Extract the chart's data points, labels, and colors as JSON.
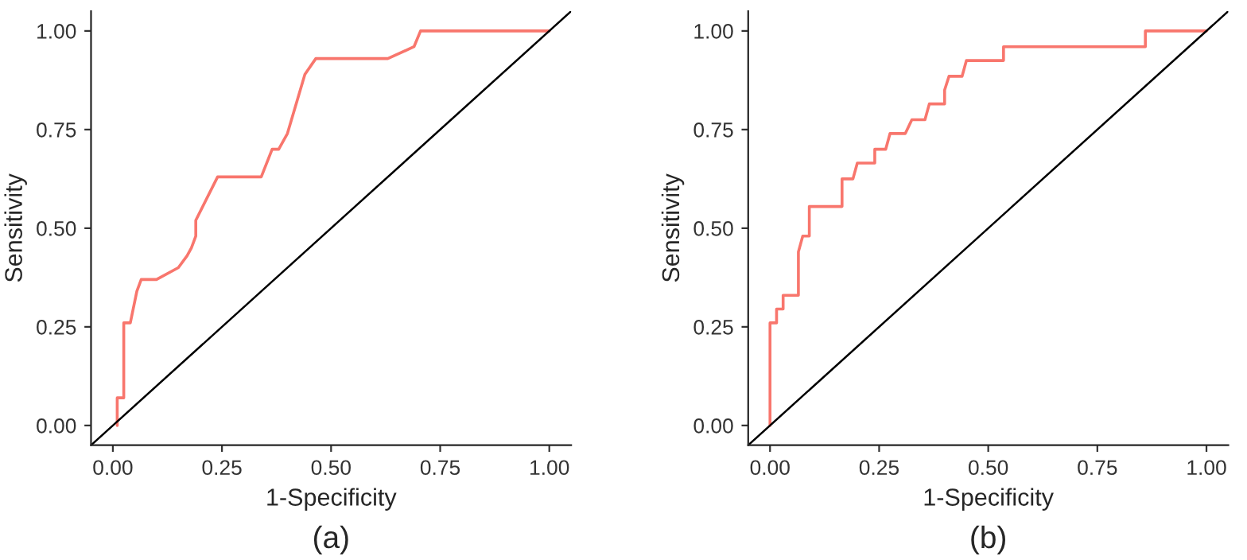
{
  "chart_data": [
    {
      "type": "line",
      "xlabel": "1-Specificity",
      "ylabel": "Sensitivity",
      "annotations": [
        "(a)"
      ],
      "xlim": [
        -0.05,
        1.05
      ],
      "ylim": [
        -0.05,
        1.05
      ],
      "xticks": [
        {
          "value": 0,
          "label": "0.00"
        },
        {
          "value": 0.25,
          "label": "0.25"
        },
        {
          "value": 0.5,
          "label": "0.50"
        },
        {
          "value": 0.75,
          "label": "0.75"
        },
        {
          "value": 1,
          "label": "1.00"
        }
      ],
      "yticks": [
        {
          "value": 0,
          "label": "0.00"
        },
        {
          "value": 0.25,
          "label": "0.25"
        },
        {
          "value": 0.5,
          "label": "0.50"
        },
        {
          "value": 0.75,
          "label": "0.75"
        },
        {
          "value": 1,
          "label": "1.00"
        }
      ],
      "grid": false,
      "legend": false,
      "series": [
        {
          "color": "#f8766d",
          "x": [
            0.01,
            0.01,
            0.025,
            0.025,
            0.04,
            0.055,
            0.065,
            0.1,
            0.15,
            0.17,
            0.18,
            0.19,
            0.19,
            0.24,
            0.34,
            0.365,
            0.38,
            0.4,
            0.44,
            0.465,
            0.63,
            0.69,
            0.705,
            1.0
          ],
          "values": [
            0,
            0.07,
            0.07,
            0.26,
            0.26,
            0.34,
            0.37,
            0.37,
            0.4,
            0.43,
            0.45,
            0.48,
            0.52,
            0.63,
            0.63,
            0.7,
            0.7,
            0.74,
            0.89,
            0.93,
            0.93,
            0.96,
            1.0,
            1.0
          ]
        },
        {
          "color": "#000000",
          "x": [
            -0.05,
            1.05
          ],
          "values": [
            -0.05,
            1.05
          ]
        }
      ]
    },
    {
      "type": "line",
      "xlabel": "1-Specificity",
      "ylabel": "Sensitivity",
      "annotations": [
        "(b)"
      ],
      "xlim": [
        -0.05,
        1.05
      ],
      "ylim": [
        -0.05,
        1.05
      ],
      "xticks": [
        {
          "value": 0,
          "label": "0.00"
        },
        {
          "value": 0.25,
          "label": "0.25"
        },
        {
          "value": 0.5,
          "label": "0.50"
        },
        {
          "value": 0.75,
          "label": "0.75"
        },
        {
          "value": 1,
          "label": "1.00"
        }
      ],
      "yticks": [
        {
          "value": 0,
          "label": "0.00"
        },
        {
          "value": 0.25,
          "label": "0.25"
        },
        {
          "value": 0.5,
          "label": "0.50"
        },
        {
          "value": 0.75,
          "label": "0.75"
        },
        {
          "value": 1,
          "label": "1.00"
        }
      ],
      "grid": false,
      "legend": false,
      "series": [
        {
          "color": "#f8766d",
          "x": [
            0,
            0,
            0.015,
            0.015,
            0.03,
            0.03,
            0.065,
            0.065,
            0.075,
            0.09,
            0.09,
            0.165,
            0.165,
            0.19,
            0.2,
            0.24,
            0.24,
            0.265,
            0.275,
            0.31,
            0.325,
            0.355,
            0.365,
            0.4,
            0.4,
            0.41,
            0.44,
            0.45,
            0.535,
            0.535,
            0.86,
            0.86,
            1.0
          ],
          "values": [
            0,
            0.26,
            0.26,
            0.295,
            0.295,
            0.33,
            0.33,
            0.44,
            0.48,
            0.48,
            0.555,
            0.555,
            0.625,
            0.625,
            0.665,
            0.665,
            0.7,
            0.7,
            0.74,
            0.74,
            0.775,
            0.775,
            0.815,
            0.815,
            0.85,
            0.885,
            0.885,
            0.925,
            0.925,
            0.96,
            0.96,
            1.0,
            1.0
          ]
        },
        {
          "color": "#000000",
          "x": [
            -0.05,
            1.05
          ],
          "values": [
            -0.05,
            1.05
          ]
        }
      ]
    }
  ]
}
